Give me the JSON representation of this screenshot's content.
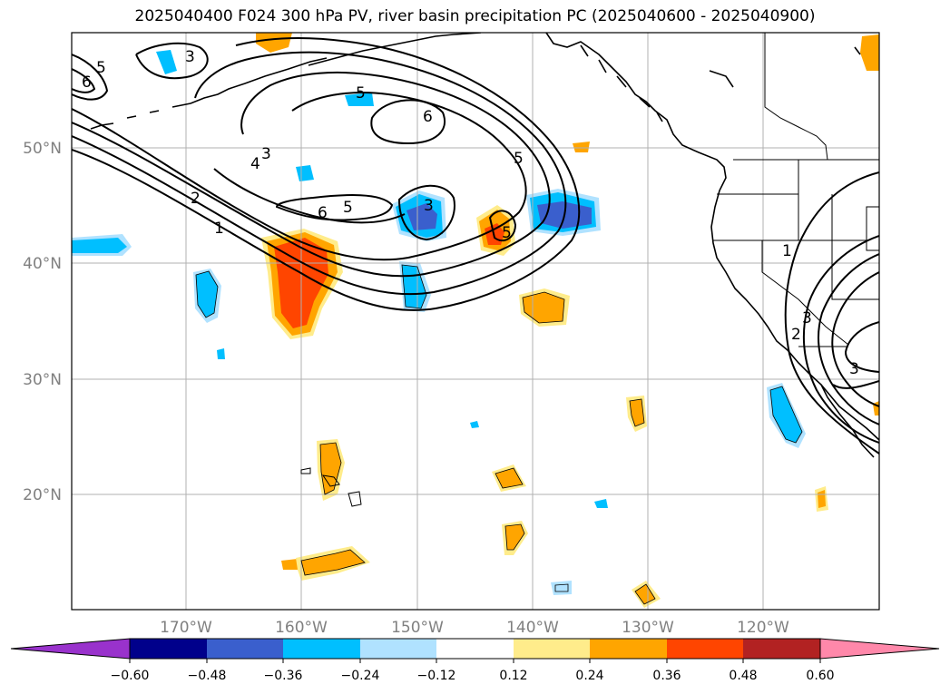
{
  "title": "2025040400 F024 300 hPa PV, river basin precipitation PC (2025040600 - 2025040900)",
  "map": {
    "lat_labels": [
      "50°N",
      "40°N",
      "30°N",
      "20°N"
    ],
    "lon_labels": [
      "170°W",
      "160°W",
      "150°W",
      "140°W",
      "130°W",
      "120°W"
    ],
    "pv_contour_labels": [
      "5",
      "6",
      "3",
      "5",
      "6",
      "3",
      "4",
      "5",
      "6",
      "2",
      "1",
      "3",
      "5",
      "5",
      "1",
      "2",
      "3",
      "3"
    ]
  },
  "colorbar": {
    "ticks": [
      "−0.60",
      "−0.48",
      "−0.36",
      "−0.24",
      "−0.12",
      "0.12",
      "0.24",
      "0.36",
      "0.48",
      "0.60"
    ],
    "colors": [
      "#9932cc",
      "#00008b",
      "#3a5fcd",
      "#00bfff",
      "#b0e2ff",
      "#ffffff",
      "#ffec8b",
      "#ffa500",
      "#ff4500",
      "#b22222",
      "#ff88aa"
    ]
  }
}
